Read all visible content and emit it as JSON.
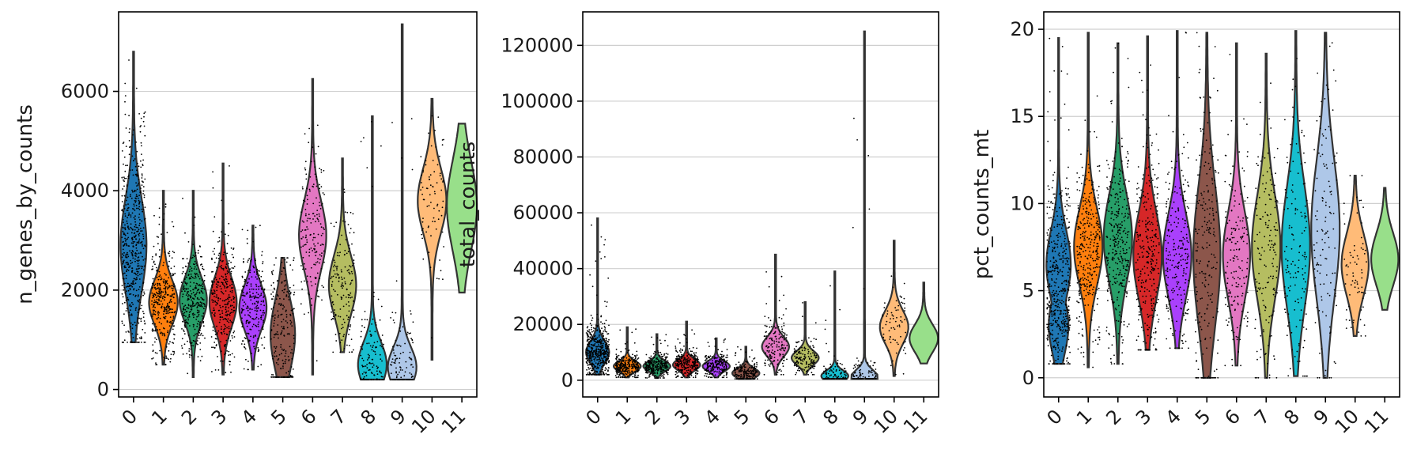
{
  "chart_data": [
    {
      "type": "violin",
      "ylabel": "n_genes_by_counts",
      "ylim": [
        -150,
        7600
      ],
      "yticks": [
        0,
        2000,
        4000,
        6000
      ],
      "categories": [
        "0",
        "1",
        "2",
        "3",
        "4",
        "5",
        "6",
        "7",
        "8",
        "9",
        "10",
        "11"
      ],
      "grid": true,
      "violins": [
        {
          "min": 950,
          "max": 6800,
          "center": 2900,
          "spread": 950,
          "peak_width": 0.38,
          "bimodal": false,
          "n_points": 520
        },
        {
          "min": 500,
          "max": 4000,
          "center": 1750,
          "spread": 450,
          "peak_width": 0.42,
          "bimodal": false,
          "n_points": 340
        },
        {
          "min": 250,
          "max": 4000,
          "center": 1800,
          "spread": 450,
          "peak_width": 0.4,
          "bimodal": false,
          "n_points": 320
        },
        {
          "min": 300,
          "max": 4550,
          "center": 1750,
          "spread": 500,
          "peak_width": 0.4,
          "bimodal": false,
          "n_points": 300
        },
        {
          "min": 400,
          "max": 3300,
          "center": 1650,
          "spread": 450,
          "peak_width": 0.4,
          "bimodal": false,
          "n_points": 240
        },
        {
          "min": 250,
          "max": 2650,
          "center": 1100,
          "spread": 700,
          "peak_width": 0.36,
          "bimodal": false,
          "n_points": 220
        },
        {
          "min": 300,
          "max": 6250,
          "center": 3100,
          "spread": 700,
          "peak_width": 0.4,
          "bimodal": false,
          "n_points": 170
        },
        {
          "min": 750,
          "max": 4650,
          "center": 2100,
          "spread": 600,
          "peak_width": 0.4,
          "bimodal": false,
          "n_points": 160
        },
        {
          "min": 200,
          "max": 5500,
          "center": 500,
          "spread": 450,
          "peak_width": 0.42,
          "bimodal": false,
          "n_points": 140
        },
        {
          "min": 200,
          "max": 7350,
          "center": 450,
          "spread": 400,
          "peak_width": 0.42,
          "bimodal": false,
          "n_points": 120
        },
        {
          "min": 600,
          "max": 5850,
          "center": 3800,
          "spread": 650,
          "peak_width": 0.42,
          "bimodal": false,
          "n_points": 80
        },
        {
          "min": 1950,
          "max": 5350,
          "center": 3700,
          "spread": 900,
          "peak_width": 0.44,
          "bimodal": false,
          "n_points": 0
        }
      ]
    },
    {
      "type": "violin",
      "ylabel": "total_counts",
      "ylim": [
        -6000,
        132000
      ],
      "yticks": [
        0,
        20000,
        40000,
        60000,
        80000,
        100000,
        120000
      ],
      "categories": [
        "0",
        "1",
        "2",
        "3",
        "4",
        "5",
        "6",
        "7",
        "8",
        "9",
        "10",
        "11"
      ],
      "grid": true,
      "violins": [
        {
          "min": 2000,
          "max": 58000,
          "center": 10000,
          "spread": 4000,
          "peak_width": 0.34,
          "bimodal": false,
          "n_points": 480
        },
        {
          "min": 1000,
          "max": 19000,
          "center": 5000,
          "spread": 1800,
          "peak_width": 0.4,
          "bimodal": false,
          "n_points": 300
        },
        {
          "min": 800,
          "max": 16500,
          "center": 5000,
          "spread": 1800,
          "peak_width": 0.4,
          "bimodal": false,
          "n_points": 280
        },
        {
          "min": 1000,
          "max": 21000,
          "center": 5500,
          "spread": 2000,
          "peak_width": 0.4,
          "bimodal": false,
          "n_points": 260
        },
        {
          "min": 1000,
          "max": 15000,
          "center": 5000,
          "spread": 1800,
          "peak_width": 0.4,
          "bimodal": false,
          "n_points": 220
        },
        {
          "min": 500,
          "max": 12000,
          "center": 2500,
          "spread": 1800,
          "peak_width": 0.4,
          "bimodal": false,
          "n_points": 200
        },
        {
          "min": 2000,
          "max": 45000,
          "center": 12000,
          "spread": 3500,
          "peak_width": 0.4,
          "bimodal": false,
          "n_points": 160
        },
        {
          "min": 2000,
          "max": 28000,
          "center": 8000,
          "spread": 2500,
          "peak_width": 0.4,
          "bimodal": false,
          "n_points": 140
        },
        {
          "min": 500,
          "max": 39000,
          "center": 1500,
          "spread": 2000,
          "peak_width": 0.4,
          "bimodal": false,
          "n_points": 120
        },
        {
          "min": 500,
          "max": 125000,
          "center": 1200,
          "spread": 2500,
          "peak_width": 0.4,
          "bimodal": false,
          "n_points": 110
        },
        {
          "min": 1500,
          "max": 50000,
          "center": 19000,
          "spread": 6000,
          "peak_width": 0.42,
          "bimodal": false,
          "n_points": 70
        },
        {
          "min": 6000,
          "max": 35000,
          "center": 15000,
          "spread": 5000,
          "peak_width": 0.42,
          "bimodal": false,
          "n_points": 0
        }
      ]
    },
    {
      "type": "violin",
      "ylabel": "pct_counts_mt",
      "ylim": [
        -1.1,
        21.0
      ],
      "yticks": [
        0,
        5,
        10,
        15,
        20
      ],
      "categories": [
        "0",
        "1",
        "2",
        "3",
        "4",
        "5",
        "6",
        "7",
        "8",
        "9",
        "10",
        "11"
      ],
      "grid": true,
      "violins": [
        {
          "min": 0.8,
          "max": 19.5,
          "center": 6.5,
          "spread": 2.0,
          "peak_width": 0.36,
          "bimodal": true,
          "n_points": 480
        },
        {
          "min": 0.6,
          "max": 19.8,
          "center": 7.5,
          "spread": 2.2,
          "peak_width": 0.42,
          "bimodal": false,
          "n_points": 340
        },
        {
          "min": 0.8,
          "max": 19.2,
          "center": 8.0,
          "spread": 2.5,
          "peak_width": 0.42,
          "bimodal": false,
          "n_points": 320
        },
        {
          "min": 1.6,
          "max": 19.6,
          "center": 7.0,
          "spread": 2.5,
          "peak_width": 0.42,
          "bimodal": false,
          "n_points": 300
        },
        {
          "min": 1.7,
          "max": 19.9,
          "center": 7.0,
          "spread": 2.4,
          "peak_width": 0.42,
          "bimodal": false,
          "n_points": 240
        },
        {
          "min": 0.0,
          "max": 19.8,
          "center": 7.0,
          "spread": 4.0,
          "peak_width": 0.4,
          "bimodal": false,
          "n_points": 220
        },
        {
          "min": 0.7,
          "max": 19.2,
          "center": 7.0,
          "spread": 2.5,
          "peak_width": 0.4,
          "bimodal": false,
          "n_points": 170
        },
        {
          "min": 0.0,
          "max": 18.6,
          "center": 7.5,
          "spread": 3.0,
          "peak_width": 0.42,
          "bimodal": false,
          "n_points": 160
        },
        {
          "min": 0.1,
          "max": 19.9,
          "center": 7.5,
          "spread": 3.5,
          "peak_width": 0.42,
          "bimodal": false,
          "n_points": 140
        },
        {
          "min": 0.0,
          "max": 19.8,
          "center": 8.5,
          "spread": 4.0,
          "peak_width": 0.42,
          "bimodal": false,
          "n_points": 120
        },
        {
          "min": 2.4,
          "max": 11.6,
          "center": 6.5,
          "spread": 1.8,
          "peak_width": 0.4,
          "bimodal": false,
          "n_points": 70
        },
        {
          "min": 3.9,
          "max": 10.9,
          "center": 6.8,
          "spread": 1.5,
          "peak_width": 0.4,
          "bimodal": false,
          "n_points": 0
        }
      ]
    }
  ],
  "palette": [
    "#1f77b4",
    "#ff7f0e",
    "#279e68",
    "#d62728",
    "#aa40fc",
    "#8c564b",
    "#e377c2",
    "#b5bd61",
    "#17becf",
    "#aec7e8",
    "#ffbb78",
    "#98df8a"
  ]
}
